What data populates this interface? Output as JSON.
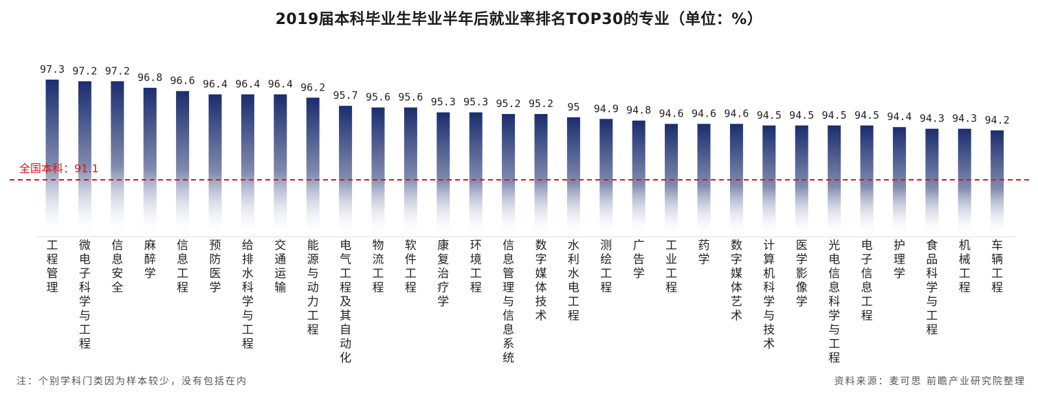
{
  "title": "2019届本科毕业生毕业半年后就业率排名TOP30的专业（单位：%）",
  "note": "注：个别学科门类因为样本较少，没有包括在内",
  "source": "资料来源：麦可思 前瞻产业研究院整理",
  "colors": {
    "bar_top": "#1a2d6e",
    "bar_bottom": "#ffffff",
    "reference_line": "#d81818"
  },
  "chart_data": {
    "type": "bar",
    "title": "2019届本科毕业生毕业半年后就业率排名TOP30的专业（单位：%）",
    "xlabel": "",
    "ylabel": "",
    "ylim": [
      80,
      100
    ],
    "categories": [
      "工程管理",
      "微电子科学与工程",
      "信息安全",
      "麻醉学",
      "信息工程",
      "预防医学",
      "给排水科学与工程",
      "交通运输",
      "能源与动力工程",
      "电气工程及其自动化",
      "物流工程",
      "软件工程",
      "康复治疗学",
      "环境工程",
      "信息管理与信息系统",
      "数字媒体技术",
      "水利水电工程",
      "测绘工程",
      "广告学",
      "工业工程",
      "药学",
      "数字媒体艺术",
      "计算机科学与技术",
      "医学影像学",
      "光电信息科学与工程",
      "电子信息工程",
      "护理学",
      "食品科学与工程",
      "机械工程",
      "车辆工程"
    ],
    "values": [
      97.3,
      97.2,
      97.2,
      96.8,
      96.6,
      96.4,
      96.4,
      96.4,
      96.2,
      95.7,
      95.6,
      95.6,
      95.3,
      95.3,
      95.2,
      95.2,
      95,
      94.9,
      94.8,
      94.6,
      94.6,
      94.6,
      94.5,
      94.5,
      94.5,
      94.5,
      94.4,
      94.3,
      94.3,
      94.2
    ],
    "value_labels": [
      "97.3",
      "97.2",
      "97.2",
      "96.8",
      "96.6",
      "96.4",
      "96.4",
      "96.4",
      "96.2",
      "95.7",
      "95.6",
      "95.6",
      "95.3",
      "95.3",
      "95.2",
      "95.2",
      "95",
      "94.9",
      "94.8",
      "94.6",
      "94.6",
      "94.6",
      "94.5",
      "94.5",
      "94.5",
      "94.5",
      "94.4",
      "94.3",
      "94.3",
      "94.2"
    ],
    "reference_line": {
      "label": "全国本科：91.1",
      "value": 91.1
    }
  }
}
